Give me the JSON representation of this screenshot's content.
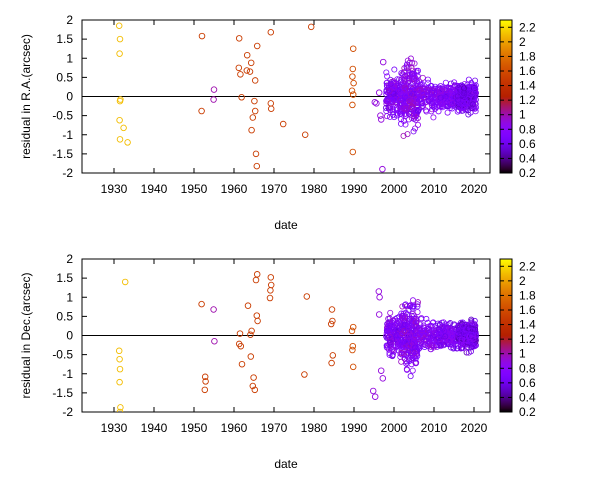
{
  "chart_data": [
    {
      "type": "scatter",
      "title": "",
      "xlabel": "date",
      "ylabel": "residual in R.A.(arcsec)",
      "xlim": [
        1922,
        2024
      ],
      "ylim": [
        -2,
        2
      ],
      "x_ticks": [
        1930,
        1940,
        1950,
        1960,
        1970,
        1980,
        1990,
        2000,
        2010,
        2020
      ],
      "y_ticks": [
        -2,
        -1.5,
        -1,
        -0.5,
        0,
        0.5,
        1,
        1.5,
        2
      ],
      "zero_line": true,
      "grid": false,
      "marker": "open-circle",
      "colorbar": {
        "ticks": [
          0.2,
          0.4,
          0.6,
          0.8,
          1,
          1.2,
          1.4,
          1.6,
          1.8,
          2,
          2.2
        ],
        "range": [
          0.2,
          2.3
        ]
      },
      "points": [
        [
          1931.3,
          1.85,
          2.1
        ],
        [
          1931.5,
          1.5,
          2.1
        ],
        [
          1931.4,
          1.12,
          2.1
        ],
        [
          1931.6,
          -0.08,
          2.1
        ],
        [
          1931.5,
          -0.12,
          2.1
        ],
        [
          1931.4,
          -0.62,
          2.1
        ],
        [
          1932.4,
          -0.82,
          2.1
        ],
        [
          1931.5,
          -1.12,
          2.1
        ],
        [
          1933.4,
          -1.2,
          2.1
        ],
        [
          1952.0,
          1.58,
          1.5
        ],
        [
          1951.9,
          -0.38,
          1.5
        ],
        [
          1955.0,
          0.18,
          1.0
        ],
        [
          1954.9,
          -0.08,
          1.0
        ],
        [
          1961.3,
          1.52,
          1.5
        ],
        [
          1961.2,
          0.75,
          1.5
        ],
        [
          1961.6,
          0.58,
          1.5
        ],
        [
          1961.9,
          -0.02,
          1.5
        ],
        [
          1963.3,
          1.08,
          1.5
        ],
        [
          1964.3,
          0.88,
          1.5
        ],
        [
          1964.0,
          0.65,
          1.5
        ],
        [
          1965.3,
          0.42,
          1.5
        ],
        [
          1963.2,
          0.68,
          1.5
        ],
        [
          1965.1,
          -0.12,
          1.5
        ],
        [
          1965.3,
          -0.38,
          1.5
        ],
        [
          1964.7,
          -0.55,
          1.5
        ],
        [
          1964.4,
          -0.88,
          1.5
        ],
        [
          1965.5,
          -1.5,
          1.5
        ],
        [
          1965.7,
          -1.82,
          1.5
        ],
        [
          1965.8,
          1.32,
          1.5
        ],
        [
          1969.2,
          1.68,
          1.5
        ],
        [
          1969.2,
          -0.18,
          1.5
        ],
        [
          1969.3,
          -0.32,
          1.5
        ],
        [
          1972.3,
          -0.72,
          1.5
        ],
        [
          1977.8,
          -1.0,
          1.5
        ],
        [
          1979.3,
          1.82,
          1.5
        ],
        [
          1989.8,
          1.25,
          1.6
        ],
        [
          1989.7,
          0.72,
          1.6
        ],
        [
          1989.6,
          0.52,
          1.6
        ],
        [
          1989.9,
          0.35,
          1.6
        ],
        [
          1989.5,
          0.15,
          1.6
        ],
        [
          1989.8,
          0.05,
          1.6
        ],
        [
          1989.6,
          -0.22,
          1.6
        ],
        [
          1989.7,
          -1.45,
          1.6
        ],
        [
          1995.2,
          -0.15,
          0.9
        ],
        [
          1995.6,
          -0.18,
          0.9
        ],
        [
          1996.3,
          0.1,
          0.9
        ],
        [
          1996.6,
          -0.5,
          0.9
        ],
        [
          1996.8,
          -0.6,
          0.9
        ],
        [
          1997.1,
          -1.9,
          0.9
        ],
        [
          1997.3,
          0.9,
          0.9
        ]
      ]
    },
    {
      "type": "scatter",
      "title": "",
      "xlabel": "date",
      "ylabel": "residual in Dec.(arcsec)",
      "xlim": [
        1922,
        2024
      ],
      "ylim": [
        -2,
        2
      ],
      "x_ticks": [
        1930,
        1940,
        1950,
        1960,
        1970,
        1980,
        1990,
        2000,
        2010,
        2020
      ],
      "y_ticks": [
        -2,
        -1.5,
        -1,
        -0.5,
        0,
        0.5,
        1,
        1.5,
        2
      ],
      "zero_line": true,
      "grid": false,
      "marker": "open-circle",
      "colorbar": {
        "ticks": [
          0.2,
          0.4,
          0.6,
          0.8,
          1,
          1.2,
          1.4,
          1.6,
          1.8,
          2,
          2.2
        ],
        "range": [
          0.2,
          2.3
        ]
      },
      "points": [
        [
          1932.8,
          1.4,
          2.1
        ],
        [
          1931.3,
          -0.4,
          2.1
        ],
        [
          1931.4,
          -0.62,
          2.1
        ],
        [
          1931.5,
          -0.88,
          2.1
        ],
        [
          1931.4,
          -1.22,
          2.1
        ],
        [
          1931.6,
          -1.88,
          2.1
        ],
        [
          1931.5,
          -2.0,
          2.1
        ],
        [
          1951.9,
          0.82,
          1.5
        ],
        [
          1952.8,
          -1.08,
          1.5
        ],
        [
          1952.9,
          -1.2,
          1.5
        ],
        [
          1952.7,
          -1.42,
          1.5
        ],
        [
          1954.9,
          0.68,
          1.0
        ],
        [
          1955.1,
          -0.15,
          1.0
        ],
        [
          1961.5,
          0.05,
          1.5
        ],
        [
          1961.3,
          -0.22,
          1.5
        ],
        [
          1961.7,
          -0.28,
          1.5
        ],
        [
          1962.0,
          -0.75,
          1.5
        ],
        [
          1963.5,
          0.78,
          1.5
        ],
        [
          1964.4,
          0.12,
          1.5
        ],
        [
          1964.1,
          0.02,
          1.5
        ],
        [
          1964.2,
          -0.55,
          1.5
        ],
        [
          1964.9,
          -1.1,
          1.5
        ],
        [
          1964.7,
          -1.32,
          1.5
        ],
        [
          1965.2,
          -1.42,
          1.5
        ],
        [
          1965.8,
          1.6,
          1.5
        ],
        [
          1965.5,
          1.45,
          1.5
        ],
        [
          1965.7,
          0.52,
          1.5
        ],
        [
          1965.9,
          0.38,
          1.5
        ],
        [
          1969.2,
          1.52,
          1.5
        ],
        [
          1969.3,
          1.32,
          1.5
        ],
        [
          1969.1,
          1.18,
          1.5
        ],
        [
          1969.0,
          0.98,
          1.5
        ],
        [
          1978.2,
          1.02,
          1.5
        ],
        [
          1977.6,
          -1.02,
          1.5
        ],
        [
          1984.5,
          0.68,
          1.5
        ],
        [
          1984.6,
          0.38,
          1.5
        ],
        [
          1984.3,
          0.3,
          1.5
        ],
        [
          1984.7,
          -0.52,
          1.5
        ],
        [
          1984.4,
          -0.72,
          1.5
        ],
        [
          1989.8,
          0.22,
          1.6
        ],
        [
          1989.5,
          0.12,
          1.6
        ],
        [
          1989.7,
          -0.28,
          1.6
        ],
        [
          1989.6,
          -0.38,
          1.6
        ],
        [
          1989.8,
          -0.82,
          1.6
        ],
        [
          1994.8,
          -1.45,
          0.9
        ],
        [
          1995.3,
          -1.6,
          0.9
        ],
        [
          1996.2,
          1.15,
          0.9
        ],
        [
          1996.4,
          1.0,
          0.9
        ],
        [
          1996.3,
          0.55,
          0.9
        ],
        [
          1996.8,
          -0.92,
          0.9
        ],
        [
          1997.2,
          -1.12,
          0.9
        ]
      ]
    }
  ]
}
